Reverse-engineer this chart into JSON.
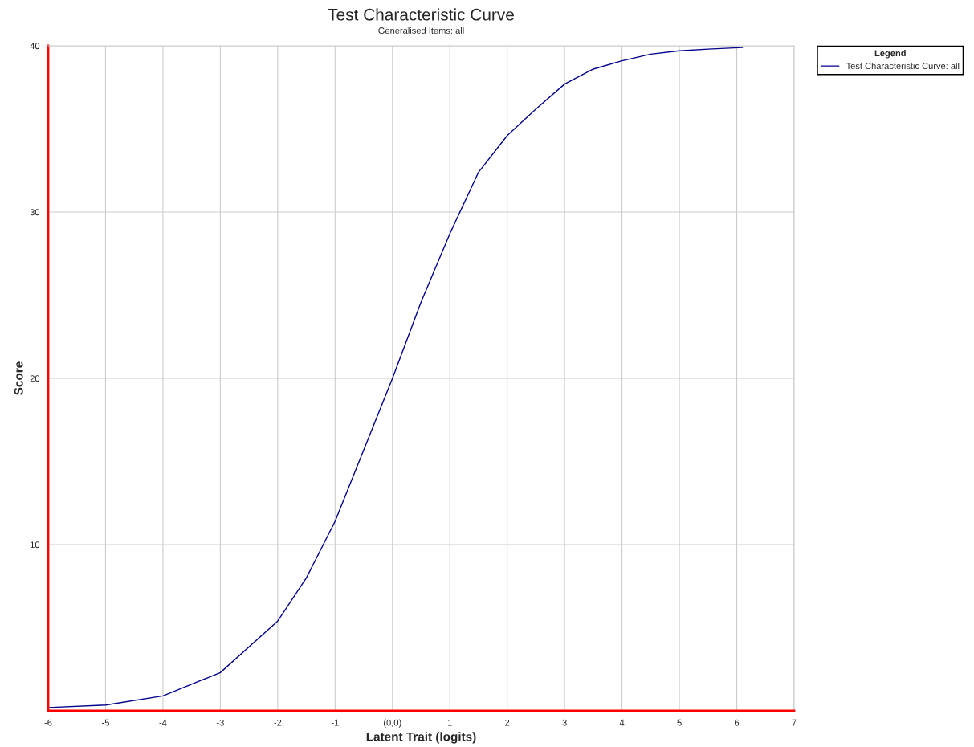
{
  "chart_data": {
    "type": "line",
    "title": "Test Characteristic Curve",
    "subtitle": "Generalised Items: all",
    "xlabel": "Latent Trait (logits)",
    "ylabel": "Score",
    "legend_title": "Legend",
    "x": [
      -6,
      -5,
      -4,
      -3,
      -2,
      -1.5,
      -1,
      -0.5,
      0,
      0.5,
      1,
      1.5,
      2,
      2.5,
      3,
      3.5,
      4,
      4.5,
      5,
      5.5,
      6.1
    ],
    "series": [
      {
        "name": "Test Characteristic Curve: all",
        "color": "#00008b",
        "values": [
          0.2,
          0.35,
          0.9,
          2.3,
          5.4,
          8,
          11.4,
          15.7,
          20,
          24.6,
          28.7,
          32.4,
          34.6,
          36.2,
          37.7,
          38.6,
          39.1,
          39.5,
          39.7,
          39.8,
          39.9
        ]
      }
    ],
    "xlim": [
      -6,
      7
    ],
    "ylim": [
      0,
      40
    ],
    "xticks": [
      -6,
      -5,
      -4,
      -3,
      -2,
      -1,
      {
        "value": 0,
        "label": "(0,0)"
      },
      1,
      2,
      3,
      4,
      5,
      6,
      7
    ],
    "yticks": [
      {
        "value": 0,
        "label": null
      },
      10,
      20,
      30,
      40
    ],
    "grid": true,
    "legend": "top right"
  }
}
